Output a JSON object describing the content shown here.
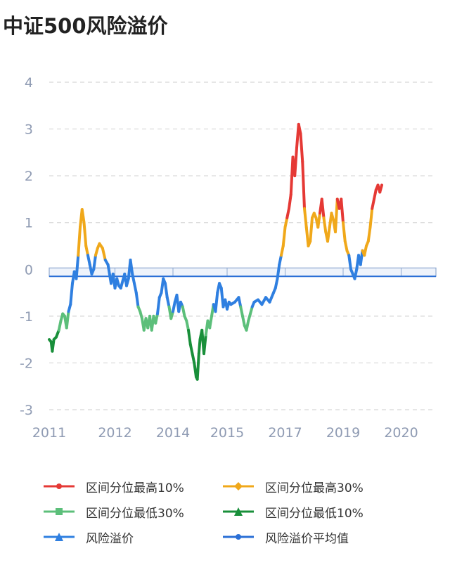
{
  "title": "中证500风险溢价",
  "colors": {
    "top10": "#e53935",
    "top30": "#f0a81a",
    "bottom30": "#5cbf7a",
    "bottom10": "#198f3a",
    "premium": "#2f7fe0",
    "mean": "#2a6fd6",
    "grid": "#d6d6d6",
    "tick": "#8f9bb3"
  },
  "legend": [
    {
      "label": "区间分位最高10%",
      "color": "#e53935",
      "marker": "circle"
    },
    {
      "label": "区间分位最高30%",
      "color": "#f0a81a",
      "marker": "diamond"
    },
    {
      "label": "区间分位最低30%",
      "color": "#5cbf7a",
      "marker": "rect"
    },
    {
      "label": "区间分位最低10%",
      "color": "#198f3a",
      "marker": "triangle"
    },
    {
      "label": "风险溢价",
      "color": "#2f7fe0",
      "marker": "triangle"
    },
    {
      "label": "风险溢价平均值",
      "color": "#2a6fd6",
      "marker": "circle"
    }
  ],
  "chart_data": {
    "type": "line",
    "title": "中证500风险溢价",
    "xlabel": "",
    "ylabel": "",
    "x_ticks": [
      "2011",
      "2012",
      "2014",
      "2015",
      "2017",
      "2019",
      "2020"
    ],
    "x_tick_positions": [
      2011.0,
      2012.7,
      2014.2,
      2015.6,
      2017.1,
      2018.6,
      2020.1
    ],
    "xlim": [
      2011.0,
      2021.0
    ],
    "ylim": [
      -3,
      4
    ],
    "y_ticks": [
      "4",
      "3",
      "2",
      "1",
      "0",
      "-1",
      "-2",
      "-3"
    ],
    "y_tick_values": [
      4,
      3,
      2,
      1,
      0,
      -1,
      -2,
      -3
    ],
    "grid": true,
    "mean_line": -0.15,
    "band": [
      -0.15,
      0.03
    ],
    "thresholds": {
      "top10": 1.2,
      "top30": 0.3,
      "bottom30": -0.85,
      "bottom10": -1.3
    },
    "series": [
      {
        "name": "风险溢价",
        "points": [
          [
            2011.0,
            -1.5
          ],
          [
            2011.05,
            -1.55
          ],
          [
            2011.08,
            -1.75
          ],
          [
            2011.12,
            -1.5
          ],
          [
            2011.18,
            -1.45
          ],
          [
            2011.25,
            -1.3
          ],
          [
            2011.3,
            -1.1
          ],
          [
            2011.35,
            -0.95
          ],
          [
            2011.4,
            -1.0
          ],
          [
            2011.45,
            -1.25
          ],
          [
            2011.5,
            -0.9
          ],
          [
            2011.55,
            -0.75
          ],
          [
            2011.6,
            -0.3
          ],
          [
            2011.65,
            -0.05
          ],
          [
            2011.7,
            -0.2
          ],
          [
            2011.75,
            0.3
          ],
          [
            2011.8,
            0.9
          ],
          [
            2011.85,
            1.28
          ],
          [
            2011.9,
            1.0
          ],
          [
            2011.95,
            0.5
          ],
          [
            2012.0,
            0.3
          ],
          [
            2012.05,
            0.1
          ],
          [
            2012.1,
            -0.1
          ],
          [
            2012.15,
            0.0
          ],
          [
            2012.2,
            0.3
          ],
          [
            2012.25,
            0.45
          ],
          [
            2012.3,
            0.55
          ],
          [
            2012.38,
            0.45
          ],
          [
            2012.45,
            0.2
          ],
          [
            2012.52,
            0.1
          ],
          [
            2012.6,
            -0.3
          ],
          [
            2012.65,
            -0.1
          ],
          [
            2012.7,
            -0.4
          ],
          [
            2012.75,
            -0.2
          ],
          [
            2012.8,
            -0.35
          ],
          [
            2012.85,
            -0.4
          ],
          [
            2012.9,
            -0.25
          ],
          [
            2012.95,
            -0.1
          ],
          [
            2013.0,
            -0.35
          ],
          [
            2013.05,
            -0.2
          ],
          [
            2013.1,
            0.2
          ],
          [
            2013.15,
            -0.1
          ],
          [
            2013.2,
            -0.3
          ],
          [
            2013.25,
            -0.5
          ],
          [
            2013.3,
            -0.8
          ],
          [
            2013.35,
            -0.9
          ],
          [
            2013.4,
            -1.05
          ],
          [
            2013.45,
            -1.3
          ],
          [
            2013.5,
            -1.05
          ],
          [
            2013.55,
            -1.25
          ],
          [
            2013.6,
            -1.0
          ],
          [
            2013.65,
            -1.3
          ],
          [
            2013.7,
            -1.0
          ],
          [
            2013.75,
            -1.15
          ],
          [
            2013.8,
            -0.95
          ],
          [
            2013.85,
            -0.6
          ],
          [
            2013.9,
            -0.5
          ],
          [
            2013.95,
            -0.2
          ],
          [
            2014.0,
            -0.3
          ],
          [
            2014.05,
            -0.6
          ],
          [
            2014.1,
            -0.8
          ],
          [
            2014.15,
            -1.05
          ],
          [
            2014.2,
            -0.9
          ],
          [
            2014.25,
            -0.7
          ],
          [
            2014.3,
            -0.55
          ],
          [
            2014.35,
            -0.9
          ],
          [
            2014.4,
            -0.7
          ],
          [
            2014.45,
            -0.8
          ],
          [
            2014.5,
            -1.0
          ],
          [
            2014.55,
            -1.1
          ],
          [
            2014.6,
            -1.3
          ],
          [
            2014.65,
            -1.6
          ],
          [
            2014.7,
            -1.8
          ],
          [
            2014.75,
            -2.0
          ],
          [
            2014.8,
            -2.3
          ],
          [
            2014.83,
            -2.35
          ],
          [
            2014.87,
            -1.8
          ],
          [
            2014.9,
            -1.5
          ],
          [
            2014.95,
            -1.3
          ],
          [
            2015.0,
            -1.8
          ],
          [
            2015.05,
            -1.4
          ],
          [
            2015.1,
            -1.1
          ],
          [
            2015.15,
            -1.25
          ],
          [
            2015.2,
            -1.0
          ],
          [
            2015.25,
            -0.75
          ],
          [
            2015.3,
            -0.9
          ],
          [
            2015.35,
            -0.5
          ],
          [
            2015.4,
            -0.3
          ],
          [
            2015.45,
            -0.4
          ],
          [
            2015.5,
            -0.8
          ],
          [
            2015.55,
            -0.65
          ],
          [
            2015.6,
            -0.85
          ],
          [
            2015.65,
            -0.7
          ],
          [
            2015.7,
            -0.75
          ],
          [
            2015.8,
            -0.7
          ],
          [
            2015.9,
            -0.6
          ],
          [
            2015.95,
            -0.8
          ],
          [
            2016.0,
            -1.0
          ],
          [
            2016.05,
            -1.2
          ],
          [
            2016.1,
            -1.3
          ],
          [
            2016.15,
            -1.1
          ],
          [
            2016.2,
            -0.95
          ],
          [
            2016.25,
            -0.8
          ],
          [
            2016.3,
            -0.7
          ],
          [
            2016.4,
            -0.65
          ],
          [
            2016.5,
            -0.75
          ],
          [
            2016.6,
            -0.6
          ],
          [
            2016.7,
            -0.7
          ],
          [
            2016.8,
            -0.5
          ],
          [
            2016.85,
            -0.4
          ],
          [
            2016.9,
            -0.2
          ],
          [
            2016.95,
            0.1
          ],
          [
            2017.0,
            0.3
          ],
          [
            2017.05,
            0.5
          ],
          [
            2017.1,
            0.9
          ],
          [
            2017.15,
            1.1
          ],
          [
            2017.2,
            1.3
          ],
          [
            2017.25,
            1.6
          ],
          [
            2017.3,
            2.4
          ],
          [
            2017.35,
            2.0
          ],
          [
            2017.4,
            2.6
          ],
          [
            2017.45,
            3.1
          ],
          [
            2017.5,
            2.9
          ],
          [
            2017.55,
            2.3
          ],
          [
            2017.6,
            1.3
          ],
          [
            2017.65,
            0.9
          ],
          [
            2017.7,
            0.5
          ],
          [
            2017.75,
            0.6
          ],
          [
            2017.8,
            1.1
          ],
          [
            2017.85,
            1.2
          ],
          [
            2017.9,
            1.1
          ],
          [
            2017.95,
            0.9
          ],
          [
            2018.0,
            1.2
          ],
          [
            2018.05,
            1.5
          ],
          [
            2018.1,
            1.1
          ],
          [
            2018.15,
            0.8
          ],
          [
            2018.2,
            0.6
          ],
          [
            2018.25,
            0.9
          ],
          [
            2018.3,
            1.2
          ],
          [
            2018.35,
            1.05
          ],
          [
            2018.4,
            0.8
          ],
          [
            2018.45,
            1.5
          ],
          [
            2018.5,
            1.3
          ],
          [
            2018.55,
            1.5
          ],
          [
            2018.6,
            1.0
          ],
          [
            2018.65,
            0.6
          ],
          [
            2018.7,
            0.4
          ],
          [
            2018.75,
            0.3
          ],
          [
            2018.8,
            0.0
          ],
          [
            2018.85,
            -0.1
          ],
          [
            2018.9,
            -0.2
          ],
          [
            2018.95,
            0.0
          ],
          [
            2019.0,
            0.3
          ],
          [
            2019.05,
            0.1
          ],
          [
            2019.1,
            0.4
          ],
          [
            2019.15,
            0.3
          ],
          [
            2019.2,
            0.5
          ],
          [
            2019.25,
            0.6
          ],
          [
            2019.3,
            0.9
          ],
          [
            2019.35,
            1.3
          ],
          [
            2019.4,
            1.5
          ],
          [
            2019.45,
            1.7
          ],
          [
            2019.5,
            1.8
          ],
          [
            2019.55,
            1.65
          ],
          [
            2019.6,
            1.8
          ]
        ]
      },
      {
        "name": "风险溢价平均值",
        "value": -0.15
      }
    ]
  }
}
